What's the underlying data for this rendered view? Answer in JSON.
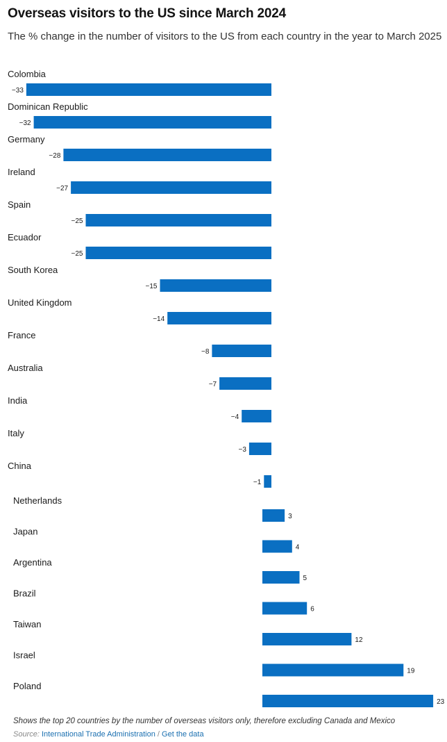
{
  "header": {
    "title": "Overseas visitors to the US since March 2024",
    "subtitle": "The % change in the number of visitors to the US from each country in the year to March 2025"
  },
  "colors": {
    "bar": "#0a6fc2",
    "label": "#1a1a1a",
    "link": "#1a6fb0"
  },
  "chart_data": {
    "type": "bar",
    "orientation": "horizontal",
    "title": "Overseas visitors to the US since March 2024",
    "subtitle": "The % change in the number of visitors to the US from each country in the year to March 2025",
    "xlabel": "",
    "ylabel": "",
    "xlim": [
      -33,
      23
    ],
    "grid": false,
    "legend": "none",
    "categories": [
      "Colombia",
      "Dominican Republic",
      "Germany",
      "Ireland",
      "Spain",
      "Ecuador",
      "South Korea",
      "United Kingdom",
      "France",
      "Australia",
      "India",
      "Italy",
      "China",
      "Netherlands",
      "Japan",
      "Argentina",
      "Brazil",
      "Taiwan",
      "Israel",
      "Poland"
    ],
    "values": [
      -33,
      -32,
      -28,
      -27,
      -25,
      -25,
      -15,
      -14,
      -8,
      -7,
      -4,
      -3,
      -1,
      3,
      4,
      5,
      6,
      12,
      19,
      23
    ],
    "value_labels": [
      "−33",
      "−32",
      "−28",
      "−27",
      "−25",
      "−25",
      "−15",
      "−14",
      "−8",
      "−7",
      "−4",
      "−3",
      "−1",
      "3",
      "4",
      "5",
      "6",
      "12",
      "19",
      "23"
    ]
  },
  "footer": {
    "note": "Shows the top 20 countries by the number of overseas visitors only, therefore excluding Canada and Mexico",
    "source_label": "Source:",
    "source_link": "International Trade Administration",
    "separator": "/",
    "data_link": "Get the data"
  }
}
